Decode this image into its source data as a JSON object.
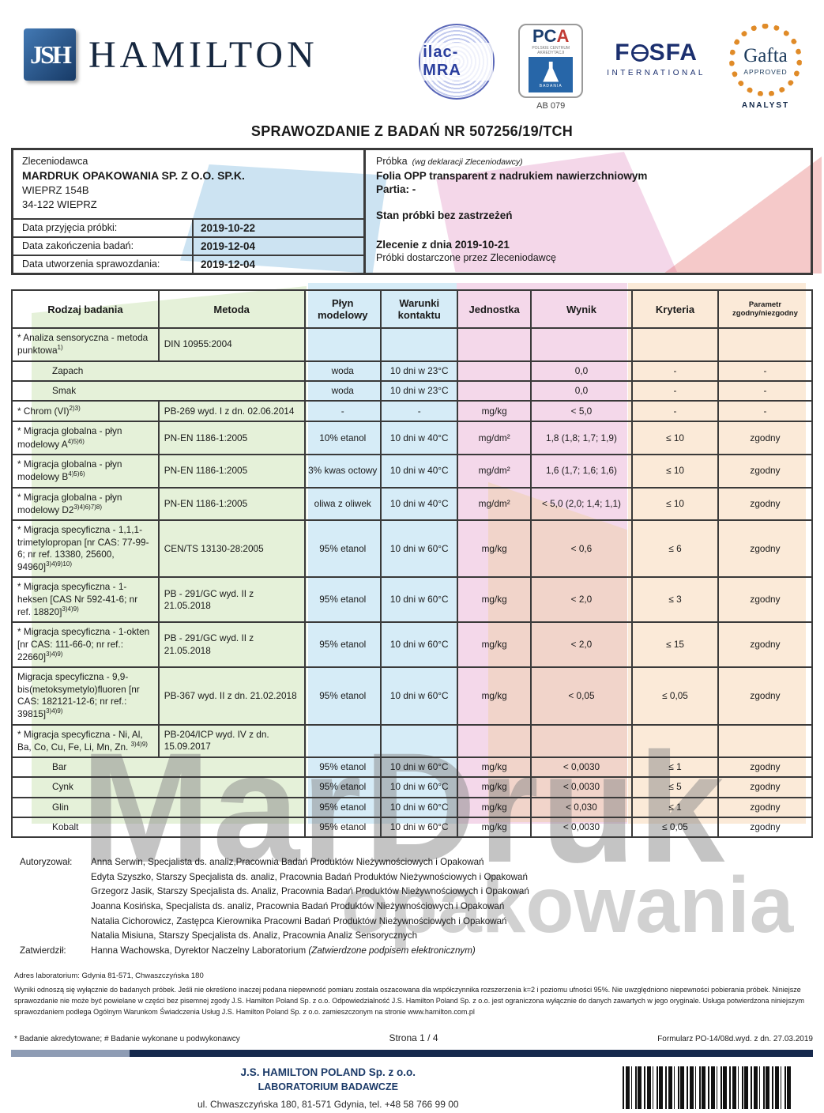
{
  "header": {
    "logo_square": "JSH",
    "brand": "HAMILTON",
    "certs": {
      "ilac": "ilac-MRA",
      "pca_word": "PC",
      "pca_word_a": "A",
      "pca_tiny": "POLSKIE CENTRUM AKREDYTACJI",
      "pca_badania": "BADANIA",
      "pca_ab": "AB 079",
      "fosfa_f": "F",
      "fosfa_sfa": "SFA",
      "fosfa_sub": "INTERNATIONAL",
      "gafta": "Gafta",
      "gafta_approved": "APPROVED",
      "gafta_analyst": "ANALYST"
    }
  },
  "title": "SPRAWOZDANIE Z BADAŃ NR 507256/19/TCH",
  "client": {
    "label": "Zleceniodawca",
    "name": "MARDRUK OPAKOWANIA SP. Z O.O. SP.K.",
    "address1": "WIEPRZ 154B",
    "address2": "34-122   WIEPRZ",
    "dates": [
      {
        "label": "Data przyjęcia próbki:",
        "value": "2019-10-22"
      },
      {
        "label": "Data zakończenia badań:",
        "value": "2019-12-04"
      },
      {
        "label": "Data utworzenia sprawozdania:",
        "value": "2019-12-04"
      }
    ]
  },
  "sample": {
    "label": "Próbka",
    "label_note": "(wg deklaracji Zleceniodawcy)",
    "name": "Folia OPP transparent z nadrukiem nawierzchniowym",
    "batch": "Partia: -",
    "condition": "Stan próbki bez zastrzeżeń",
    "order": "Zlecenie z dnia 2019-10-21",
    "delivery": "Próbki dostarczone przez Zleceniodawcę"
  },
  "results_table": {
    "headers": [
      "Rodzaj badania",
      "Metoda",
      "Płyn modelowy",
      "Warunki kontaktu",
      "Jednostka",
      "Wynik",
      "Kryteria",
      "Parametr zgodny/niezgodny"
    ],
    "rows": [
      {
        "name": "* Analiza sensoryczna - metoda punktowa",
        "sup": "1)",
        "method": "DIN 10955:2004",
        "fluid": "",
        "cond": "",
        "unit": "",
        "result": "",
        "crit": "",
        "param": ""
      },
      {
        "name": "Zapach",
        "span2": true,
        "indent": true,
        "fluid": "woda",
        "cond": "10 dni w 23°C",
        "unit": "",
        "result": "0,0",
        "crit": "-",
        "param": "-"
      },
      {
        "name": "Smak",
        "span2": true,
        "indent": true,
        "fluid": "woda",
        "cond": "10 dni w 23°C",
        "unit": "",
        "result": "0,0",
        "crit": "-",
        "param": "-"
      },
      {
        "name": "* Chrom (VI)",
        "sup": "2)3)",
        "method": "PB-269 wyd. I z dn. 02.06.2014",
        "fluid": "-",
        "cond": "-",
        "unit": "mg/kg",
        "result": "< 5,0",
        "crit": "-",
        "param": "-"
      },
      {
        "name": "* Migracja globalna - płyn modelowy A",
        "sup": "4)5)6)",
        "method": "PN-EN 1186-1:2005",
        "fluid": "10% etanol",
        "cond": "10 dni w 40°C",
        "unit": "mg/dm²",
        "result": "1,8 (1,8; 1,7; 1,9)",
        "crit": "≤ 10",
        "param": "zgodny"
      },
      {
        "name": "* Migracja globalna - płyn modelowy B",
        "sup": "4)5)6)",
        "method": "PN-EN 1186-1:2005",
        "fluid": "3% kwas octowy",
        "cond": "10 dni w 40°C",
        "unit": "mg/dm²",
        "result": "1,6 (1,7; 1,6; 1,6)",
        "crit": "≤ 10",
        "param": "zgodny"
      },
      {
        "name": "* Migracja globalna - płyn modelowy D2",
        "sup": "3)4)6)7)8)",
        "method": "PN-EN 1186-1:2005",
        "fluid": "oliwa z oliwek",
        "cond": "10 dni w 40°C",
        "unit": "mg/dm²",
        "result": "< 5,0 (2,0; 1,4; 1,1)",
        "crit": "≤ 10",
        "param": "zgodny"
      },
      {
        "name": "* Migracja specyficzna - 1,1,1-trimetylopropan [nr CAS: 77-99-6; nr ref. 13380, 25600, 94960]",
        "sup": "3)4)9)10)",
        "method": "CEN/TS 13130-28:2005",
        "fluid": "95% etanol",
        "cond": "10 dni w 60°C",
        "unit": "mg/kg",
        "result": "< 0,6",
        "crit": "≤ 6",
        "param": "zgodny"
      },
      {
        "name": "* Migracja specyficzna - 1-heksen [CAS Nr 592-41-6; nr ref. 18820]",
        "sup": "3)4)9)",
        "method": "PB - 291/GC wyd. II z 21.05.2018",
        "fluid": "95% etanol",
        "cond": "10 dni w 60°C",
        "unit": "mg/kg",
        "result": "< 2,0",
        "crit": "≤ 3",
        "param": "zgodny"
      },
      {
        "name": "* Migracja specyficzna - 1-okten [nr CAS: 111-66-0; nr ref.: 22660]",
        "sup": "3)4)9)",
        "method": "PB - 291/GC wyd. II z 21.05.2018",
        "fluid": "95% etanol",
        "cond": "10 dni w 60°C",
        "unit": "mg/kg",
        "result": "< 2,0",
        "crit": "≤ 15",
        "param": "zgodny"
      },
      {
        "name": "Migracja specyficzna - 9,9-bis(metoksymetylo)fluoren [nr CAS: 182121-12-6; nr ref.: 39815]",
        "sup": "3)4)9)",
        "method": "PB-367 wyd. II z dn. 21.02.2018",
        "fluid": "95% etanol",
        "cond": "10 dni w 60°C",
        "unit": "mg/kg",
        "result": "< 0,05",
        "crit": "≤ 0,05",
        "param": "zgodny"
      },
      {
        "name": "* Migracja specyficzna - Ni, Al, Ba, Co, Cu, Fe, Li, Mn, Zn. ",
        "sup": "3)4)9)",
        "method": "PB-204/ICP wyd. IV z dn. 15.09.2017",
        "fluid": "",
        "cond": "",
        "unit": "",
        "result": "",
        "crit": "",
        "param": ""
      },
      {
        "name": "Bar",
        "span2": true,
        "indent": true,
        "fluid": "95% etanol",
        "cond": "10 dni w 60°C",
        "unit": "mg/kg",
        "result": "< 0,0030",
        "crit": "≤ 1",
        "param": "zgodny"
      },
      {
        "name": "Cynk",
        "span2": true,
        "indent": true,
        "fluid": "95% etanol",
        "cond": "10 dni w 60°C",
        "unit": "mg/kg",
        "result": "< 0,0030",
        "crit": "≤ 5",
        "param": "zgodny"
      },
      {
        "name": "Glin",
        "span2": true,
        "indent": true,
        "fluid": "95% etanol",
        "cond": "10 dni w 60°C",
        "unit": "mg/kg",
        "result": "< 0,030",
        "crit": "≤ 1",
        "param": "zgodny"
      },
      {
        "name": "Kobalt",
        "span2": true,
        "indent": true,
        "fluid": "95% etanol",
        "cond": "10 dni w 60°C",
        "unit": "mg/kg",
        "result": "< 0,0030",
        "crit": "≤ 0,05",
        "param": "zgodny"
      }
    ]
  },
  "signatures": {
    "authorized_label": "Autoryzował:",
    "authorized": [
      "Anna Serwin, Specjalista ds. analiz,Pracownia Badań Produktów Nieżywnościowych i Opakowań",
      "Edyta Szyszko, Starszy Specjalista ds. analiz, Pracownia Badań Produktów Nieżywnościowych i Opakowań",
      "Grzegorz Jasik, Starszy Specjalista ds. Analiz, Pracownia Badań Produktów Nieżywnościowych i Opakowań",
      "Joanna Kosińska, Specjalista ds. analiz, Pracownia Badań Produktów Nieżywnościowych i Opakowań",
      "Natalia Cichorowicz, Zastępca Kierownika Pracowni Badań Produktów Nieżywnościowych i Opakowań",
      "Natalia  Misiuna, Starszy Specjalista ds. Analiz, Pracownia Analiz Sensorycznych"
    ],
    "approved_label": "Zatwierdził:",
    "approved_text": "Hanna Wachowska, Dyrektor Naczelny Laboratorium",
    "approved_note": "(Zatwierdzone podpisem elektronicznym)"
  },
  "footer": {
    "lab_address": "Adres laboratorium: Gdynia 81-571, Chwaszczyńska 180",
    "legal": "Wyniki odnoszą się wyłącznie do badanych próbek. Jeśli nie określono inaczej podana niepewność pomiaru została oszacowana dla współczynnika rozszerzenia k=2 i poziomu ufności 95%. Nie uwzględniono niepewności pobierania próbek. Niniejsze sprawozdanie nie może być powielane w części bez pisemnej zgody J.S. Hamilton Poland Sp. z o.o. Odpowiedzialność J.S. Hamilton Poland Sp. z o.o. jest ograniczona wyłącznie do danych zawartych w jego oryginale. Usługa potwierdzona niniejszym sprawozdaniem podlega Ogólnym Warunkom Świadczenia Usług J.S. Hamilton Poland Sp. z o.o. zamieszczonym na stronie www.hamilton.com.pl",
    "accredited_note": "* Badanie akredytowane;  # Badanie wykonane u podwykonawcy",
    "page": "Strona  1 / 4",
    "form": "Formularz PO-14/08d.wyd. z dn. 27.03.2019",
    "company_name": "J.S. HAMILTON POLAND Sp. z o.o.",
    "company_lab": "LABORATORIUM BADAWCZE",
    "company_addr": "ul. Chwaszczyńska 180, 81-571 Gdynia, tel. +48 58 766 99 00"
  },
  "watermark": {
    "line1": "MarDruk",
    "line2": "opakowania"
  },
  "colors": {
    "navy": "#16294d",
    "brand_navy": "#16273f",
    "accent_orange": "#e08b28",
    "accent_blue": "#2b3f9e"
  }
}
